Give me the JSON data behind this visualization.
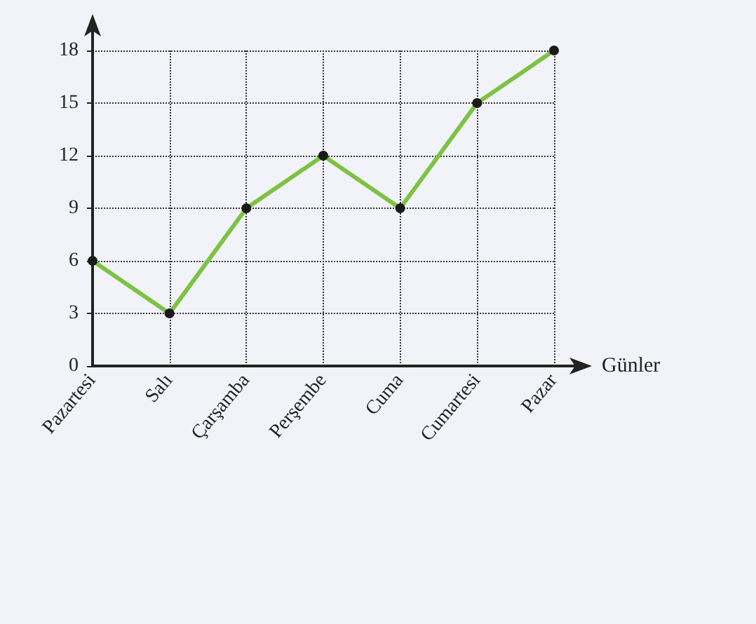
{
  "chart_data": {
    "type": "line",
    "xlabel": "Günler",
    "categories": [
      "Pazartesi",
      "Salı",
      "Çarşamba",
      "Perşembe",
      "Cuma",
      "Cumartesi",
      "Pazar"
    ],
    "series": [
      {
        "color": "#7dc242",
        "values": [
          6,
          3,
          9,
          12,
          9,
          15,
          18
        ]
      }
    ],
    "ylim": [
      0,
      18
    ],
    "yticks": [
      0,
      3,
      6,
      9,
      12,
      15,
      18
    ],
    "grid": true,
    "marker": "circle",
    "line_style": "solid"
  }
}
